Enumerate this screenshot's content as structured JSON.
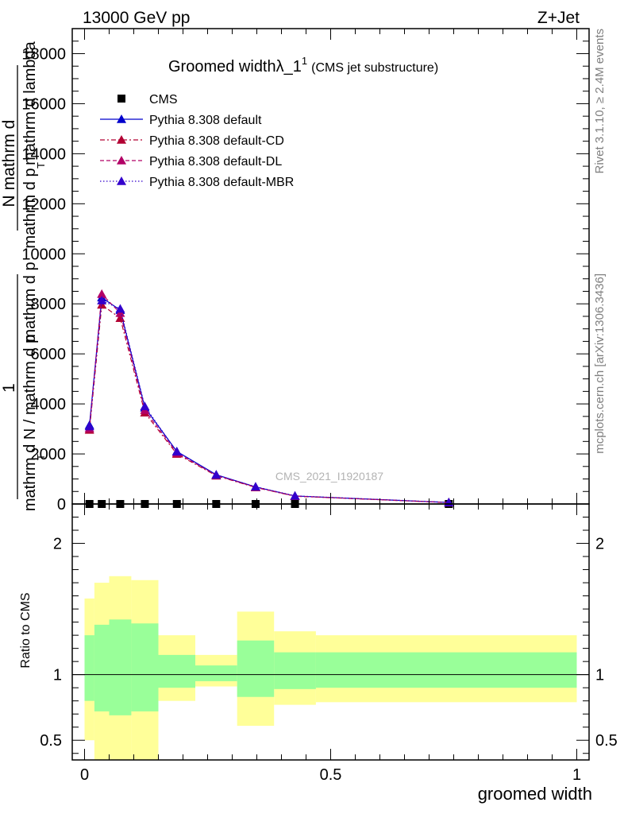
{
  "header": {
    "left": "13000 GeV pp",
    "right": "Z+Jet"
  },
  "plot_title": {
    "main": "Groomed width",
    "symbol": "λ_1",
    "superscript": "1",
    "sub": "(CMS jet substructure)"
  },
  "side_labels": {
    "rivet": "Rivet 3.1.10, ≥ 2.4M events",
    "mcplots": "mcplots.cern.ch [arXiv:1306.3436]"
  },
  "watermark": "CMS_2021_I1920187",
  "y_label_main": {
    "numerator_line1": "mathrm d",
    "numerator_line2": "N",
    "numerator_line3": "mathrm d",
    "numerator_line4": "p",
    "numerator_line5": "T",
    "numerator_line6": "mathrm d",
    "numerator_line7": "lambda",
    "fraction_one": "1",
    "denominator_line1": "mathrm d N / mathrm d p",
    "denominator_line2": "T"
  },
  "ratio_ylabel": "Ratio to CMS",
  "xlabel": "groomed width",
  "colors": {
    "default": "#0000cc",
    "cd": "#b20033",
    "dl": "#b20066",
    "mbr": "#3300cc",
    "band_inner": "#99ff99",
    "band_outer": "#ffff99"
  },
  "chart_data": [
    {
      "type": "line",
      "xlim": [
        -0.025,
        1.025
      ],
      "ylim": [
        0,
        19000
      ],
      "yticks": [
        0,
        2000,
        4000,
        6000,
        8000,
        10000,
        12000,
        14000,
        16000,
        18000
      ],
      "ytick_labels": [
        "0",
        "2000",
        "4000",
        "6000",
        "8000",
        "10000",
        "12000",
        "14000",
        "16000",
        "18000"
      ],
      "series": [
        {
          "name": "CMS",
          "marker": "square",
          "x": [
            0.01,
            0.035,
            0.0725,
            0.1225,
            0.1875,
            0.2675,
            0.3475,
            0.4275,
            0.74
          ],
          "y": [
            0,
            0,
            0,
            0,
            0,
            0,
            0,
            0,
            0
          ]
        },
        {
          "name": "Pythia 8.308 default",
          "marker": "triangle",
          "style": "solid",
          "x": [
            0.01,
            0.035,
            0.0725,
            0.1225,
            0.1875,
            0.2675,
            0.3475,
            0.4275,
            0.74
          ],
          "y": [
            3150,
            8250,
            7750,
            3850,
            2100,
            1170,
            680,
            320,
            60
          ]
        },
        {
          "name": "Pythia 8.308 default-CD",
          "marker": "triangle",
          "style": "dashdot",
          "x": [
            0.01,
            0.035,
            0.0725,
            0.1225,
            0.1875,
            0.2675,
            0.3475,
            0.4275,
            0.74
          ],
          "y": [
            2960,
            7960,
            7430,
            3650,
            2000,
            1130,
            660,
            310,
            55
          ]
        },
        {
          "name": "Pythia 8.308 default-DL",
          "marker": "triangle",
          "style": "dashed",
          "x": [
            0.01,
            0.035,
            0.0725,
            0.1225,
            0.1875,
            0.2675,
            0.3475,
            0.4275,
            0.74
          ],
          "y": [
            3020,
            8390,
            7630,
            3750,
            2040,
            1150,
            670,
            315,
            58
          ]
        },
        {
          "name": "Pythia 8.308 default-MBR",
          "marker": "triangle",
          "style": "dotted",
          "x": [
            0.01,
            0.035,
            0.0725,
            0.1225,
            0.1875,
            0.2675,
            0.3475,
            0.4275,
            0.74
          ],
          "y": [
            3100,
            8130,
            7800,
            3900,
            2090,
            1160,
            690,
            325,
            62
          ]
        }
      ]
    },
    {
      "type": "area",
      "xlim": [
        -0.025,
        1.025
      ],
      "ylim": [
        0.35,
        2.3
      ],
      "yticks": [
        0.5,
        1,
        2
      ],
      "ytick_labels": [
        "0.5",
        "1",
        "2"
      ],
      "xticks": [
        0,
        0.5,
        1
      ],
      "xtick_labels": [
        "0",
        "0.5",
        "1"
      ],
      "reference_line": 1,
      "bins": [
        {
          "x0": 0.0,
          "x1": 0.02,
          "inner": [
            0.8,
            1.3
          ],
          "outer": [
            0.5,
            1.58
          ]
        },
        {
          "x0": 0.02,
          "x1": 0.05,
          "inner": [
            0.72,
            1.38
          ],
          "outer": [
            0.35,
            1.7
          ]
        },
        {
          "x0": 0.05,
          "x1": 0.095,
          "inner": [
            0.69,
            1.42
          ],
          "outer": [
            0.35,
            1.75
          ]
        },
        {
          "x0": 0.095,
          "x1": 0.15,
          "inner": [
            0.72,
            1.39
          ],
          "outer": [
            0.35,
            1.72
          ]
        },
        {
          "x0": 0.15,
          "x1": 0.225,
          "inner": [
            0.9,
            1.15
          ],
          "outer": [
            0.8,
            1.3
          ]
        },
        {
          "x0": 0.225,
          "x1": 0.31,
          "inner": [
            0.95,
            1.07
          ],
          "outer": [
            0.91,
            1.15
          ]
        },
        {
          "x0": 0.31,
          "x1": 0.385,
          "inner": [
            0.83,
            1.26
          ],
          "outer": [
            0.61,
            1.48
          ]
        },
        {
          "x0": 0.385,
          "x1": 0.47,
          "inner": [
            0.89,
            1.17
          ],
          "outer": [
            0.77,
            1.33
          ]
        },
        {
          "x0": 0.47,
          "x1": 1.0,
          "inner": [
            0.9,
            1.17
          ],
          "outer": [
            0.79,
            1.3
          ]
        }
      ]
    }
  ]
}
